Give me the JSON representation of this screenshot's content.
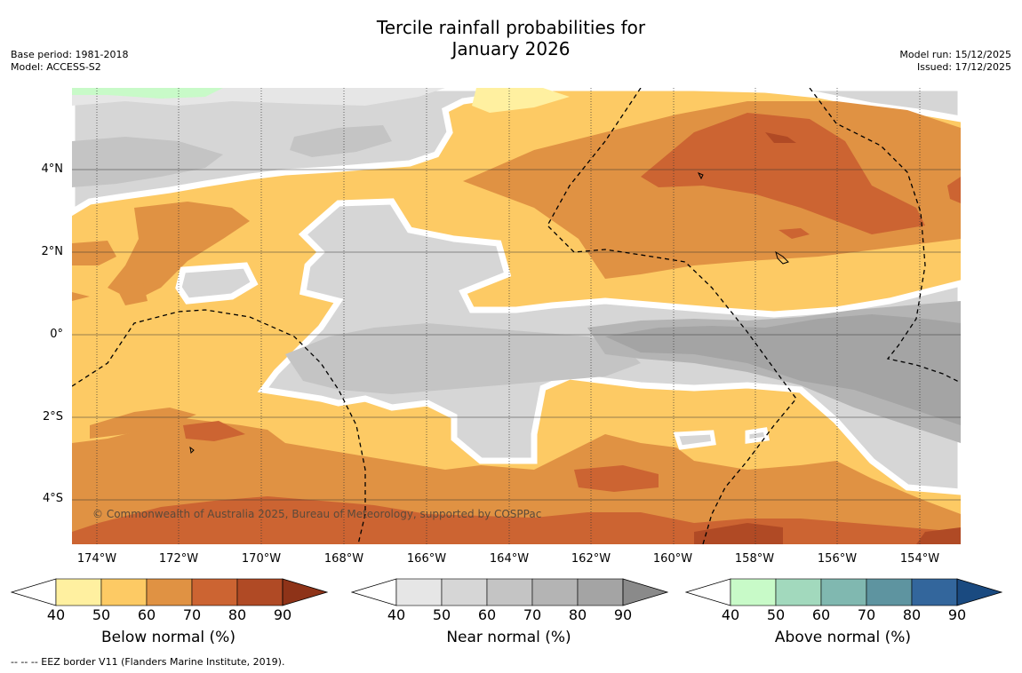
{
  "title_line1": "Tercile rainfall probabilities for",
  "title_line2": "January 2026",
  "base_period": "Base period: 1981-2018",
  "model": "Model: ACCESS-S2",
  "model_run": "Model run: 15/12/2025",
  "issued": "Issued: 17/12/2025",
  "copyright": "© Commonwealth of Australia 2025, Bureau of Meteorology, supported by COSPPac",
  "footnote": "--  --  -- EEZ border V11 (Flanders Marine Institute, 2019).",
  "map": {
    "lat_labels": [
      "4°N",
      "2°N",
      "0°",
      "2°S",
      "4°S"
    ],
    "lon_labels": [
      "174°W",
      "172°W",
      "170°W",
      "168°W",
      "166°W",
      "164°W",
      "162°W",
      "160°W",
      "158°W",
      "156°W",
      "154°W"
    ],
    "lat_range": [
      -5.2,
      5.8
    ],
    "lon_range": [
      -174.6,
      -153.1
    ],
    "colors": {
      "below": [
        "#fff0a0",
        "#fdca64",
        "#e09243",
        "#cc6432",
        "#b04a25"
      ],
      "near": [
        "#e6e6e6",
        "#d6d6d6",
        "#c4c4c4",
        "#b4b4b4",
        "#a4a4a4"
      ],
      "above": [
        "#c8fac8",
        "#a2d9bd",
        "#80b8b0",
        "#5e94a0",
        "#33669c"
      ],
      "sea_dry": "#fdca64"
    }
  },
  "colorbars": [
    {
      "title": "Below normal (%)",
      "ticks": [
        "40",
        "50",
        "60",
        "70",
        "80",
        "90"
      ],
      "colors": [
        "#fff0a0",
        "#fdca64",
        "#e09243",
        "#cc6432",
        "#b04a25"
      ],
      "max_color": "#8e3318"
    },
    {
      "title": "Near normal (%)",
      "ticks": [
        "40",
        "50",
        "60",
        "70",
        "80",
        "90"
      ],
      "colors": [
        "#e6e6e6",
        "#d6d6d6",
        "#c4c4c4",
        "#b4b4b4",
        "#a4a4a4"
      ],
      "max_color": "#8a8a8a"
    },
    {
      "title": "Above normal (%)",
      "ticks": [
        "40",
        "50",
        "60",
        "70",
        "80",
        "90"
      ],
      "colors": [
        "#c8fac8",
        "#a2d9bd",
        "#80b8b0",
        "#5e94a0",
        "#33669c"
      ],
      "max_color": "#1a4a80"
    }
  ]
}
